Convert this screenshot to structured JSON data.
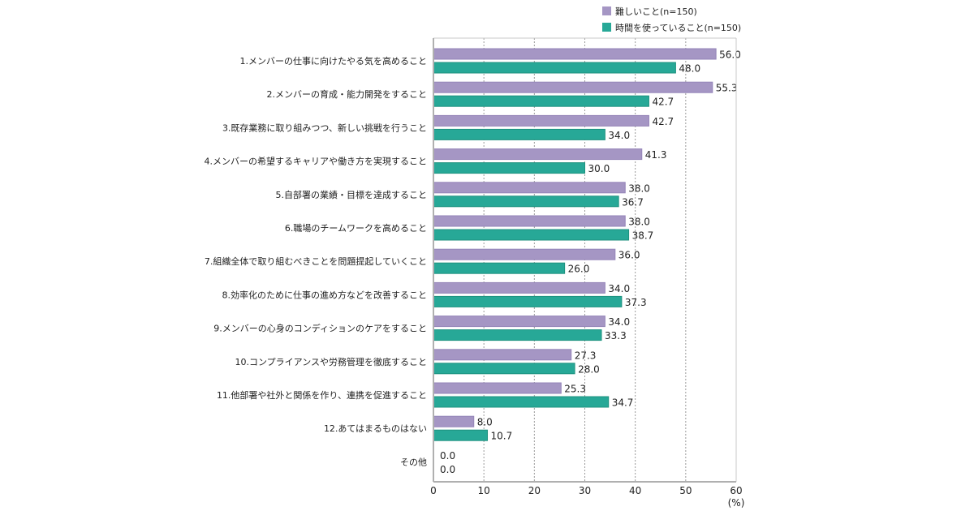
{
  "chart_data": {
    "type": "bar",
    "orientation": "horizontal",
    "title": "",
    "xlabel": "",
    "unit_label": "(%)",
    "xlim": [
      0,
      60
    ],
    "xticks": [
      0,
      10,
      20,
      30,
      40,
      50,
      60
    ],
    "grid": "vertical dotted",
    "legend_position": "top-right",
    "categories": [
      "1.メンバーの仕事に向けたやる気を高めること",
      "2.メンバーの育成・能力開発をすること",
      "3.既存業務に取り組みつつ、新しい挑戦を行うこと",
      "4.メンバーの希望するキャリアや働き方を実現すること",
      "5.自部署の業績・目標を達成すること",
      "6.職場のチームワークを高めること",
      "7.組織全体で取り組むべきことを問題提起していくこと",
      "8.効率化のために仕事の進め方などを改善すること",
      "9.メンバーの心身のコンディションのケアをすること",
      "10.コンプライアンスや労務管理を徹底すること",
      "11.他部署や社外と関係を作り、連携を促進すること",
      "12.あてはまるものはない",
      "その他"
    ],
    "series": [
      {
        "name": "難しいこと(n=150)",
        "color": "#a596c4",
        "values": [
          56.0,
          55.3,
          42.7,
          41.3,
          38.0,
          38.0,
          36.0,
          34.0,
          34.0,
          27.3,
          25.3,
          8.0,
          0.0
        ],
        "labels": [
          "56.0",
          "55.3",
          "42.7",
          "41.3",
          "38.0",
          "38.0",
          "36.0",
          "34.0",
          "34.0",
          "27.3",
          "25.3",
          "8.0",
          "0.0"
        ]
      },
      {
        "name": "時間を使っていること(n=150)",
        "color": "#27a897",
        "values": [
          48.0,
          42.7,
          34.0,
          30.0,
          36.7,
          38.7,
          26.0,
          37.3,
          33.3,
          28.0,
          34.7,
          10.7,
          0.0
        ],
        "labels": [
          "48.0",
          "42.7",
          "34.0",
          "30.0",
          "36.7",
          "38.7",
          "26.0",
          "37.3",
          "33.3",
          "28.0",
          "34.7",
          "10.7",
          "0.0"
        ]
      }
    ]
  }
}
